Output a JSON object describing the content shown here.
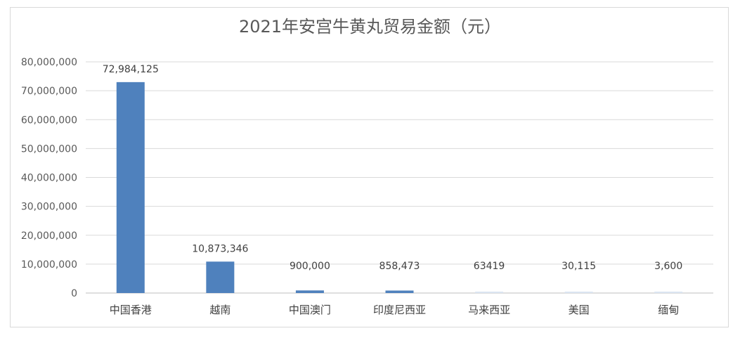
{
  "chart_data": {
    "type": "bar",
    "title": "2021年安宫牛黄丸贸易金额（元）",
    "categories": [
      "中国香港",
      "越南",
      "中国澳门",
      "印度尼西亚",
      "马来西亚",
      "美国",
      "缅甸"
    ],
    "values": [
      72984125,
      10873346,
      900000,
      858473,
      63419,
      30115,
      3600
    ],
    "data_labels": [
      "72,984,125",
      "10,873,346",
      "900,000",
      "858,473",
      "63419",
      "30,115",
      "3,600"
    ],
    "ylim": [
      0,
      80000000
    ],
    "yticks": [
      0,
      10000000,
      20000000,
      30000000,
      40000000,
      50000000,
      60000000,
      70000000,
      80000000
    ],
    "ytick_labels": [
      "0",
      "10,000,000",
      "20,000,000",
      "30,000,000",
      "40,000,000",
      "50,000,000",
      "60,000,000",
      "70,000,000",
      "80,000,000"
    ],
    "xlabel": "",
    "ylabel": "",
    "grid": true,
    "bar_color": "#4f81bd",
    "light_bar_color": "#dbe5f1"
  }
}
